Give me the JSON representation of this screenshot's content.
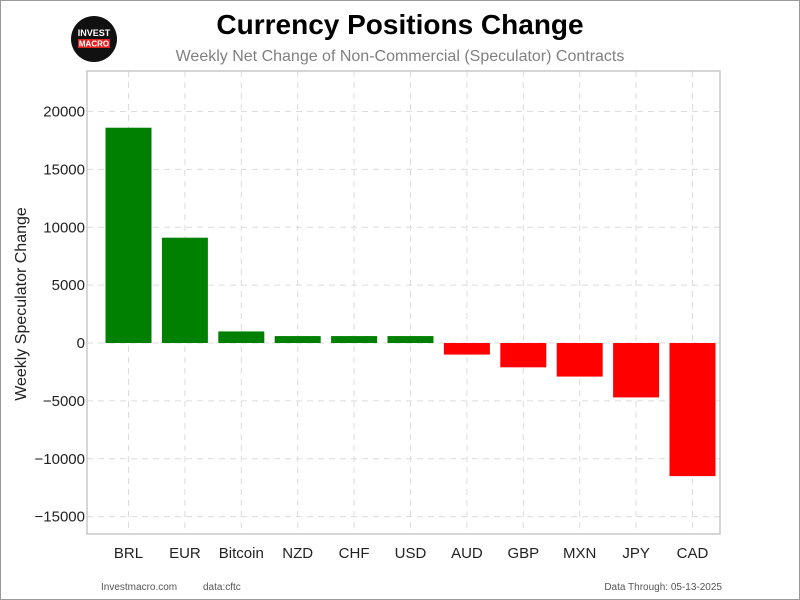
{
  "header": {
    "title": "Currency Positions Change",
    "subtitle": "Weekly Net Change of Non-Commercial (Speculator) Contracts"
  },
  "logo": {
    "line1": "INVEST",
    "line2": "MACRO"
  },
  "footer": {
    "site": "Investmacro.com",
    "source": "data:cftc",
    "date": "Data Through: 05-13-2025"
  },
  "colors": {
    "positive": "#008000",
    "negative": "#ff0000",
    "grid": "#dcdcdc"
  },
  "chart_data": {
    "type": "bar",
    "title": "Currency Positions Change",
    "subtitle": "Weekly Net Change of Non-Commercial (Speculator) Contracts",
    "xlabel": "",
    "ylabel": "Weekly Speculator Change",
    "categories": [
      "BRL",
      "EUR",
      "Bitcoin",
      "NZD",
      "CHF",
      "USD",
      "AUD",
      "GBP",
      "MXN",
      "JPY",
      "CAD"
    ],
    "values": [
      18600,
      9100,
      1000,
      600,
      600,
      600,
      -1000,
      -2100,
      -2900,
      -4700,
      -11500
    ],
    "ylim": [
      -16500,
      23500
    ],
    "yticks": [
      -15000,
      -10000,
      -5000,
      0,
      5000,
      10000,
      15000,
      20000
    ],
    "grid": true
  }
}
